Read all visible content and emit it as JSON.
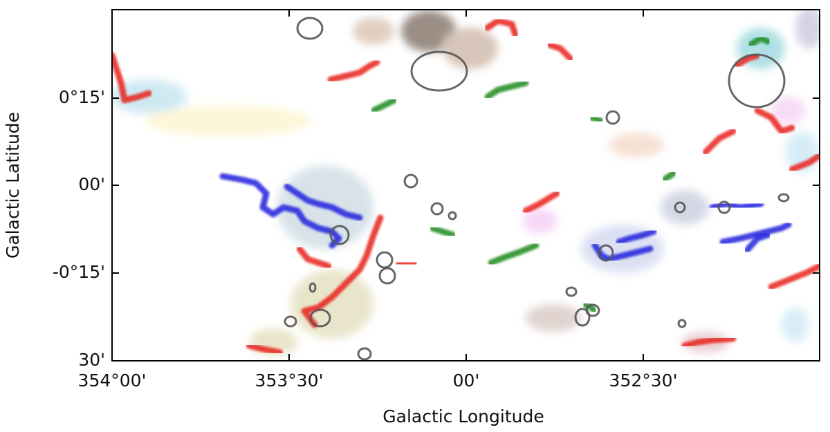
{
  "axes": {
    "x": {
      "label": "Galactic Longitude",
      "ticks": [
        "354°00'",
        "353°30'",
        "00'",
        "352°30'"
      ]
    },
    "y": {
      "label": "Galactic Latitude",
      "ticks": [
        "0°15'",
        "00'",
        "-0°15'",
        "30'"
      ]
    }
  }
}
